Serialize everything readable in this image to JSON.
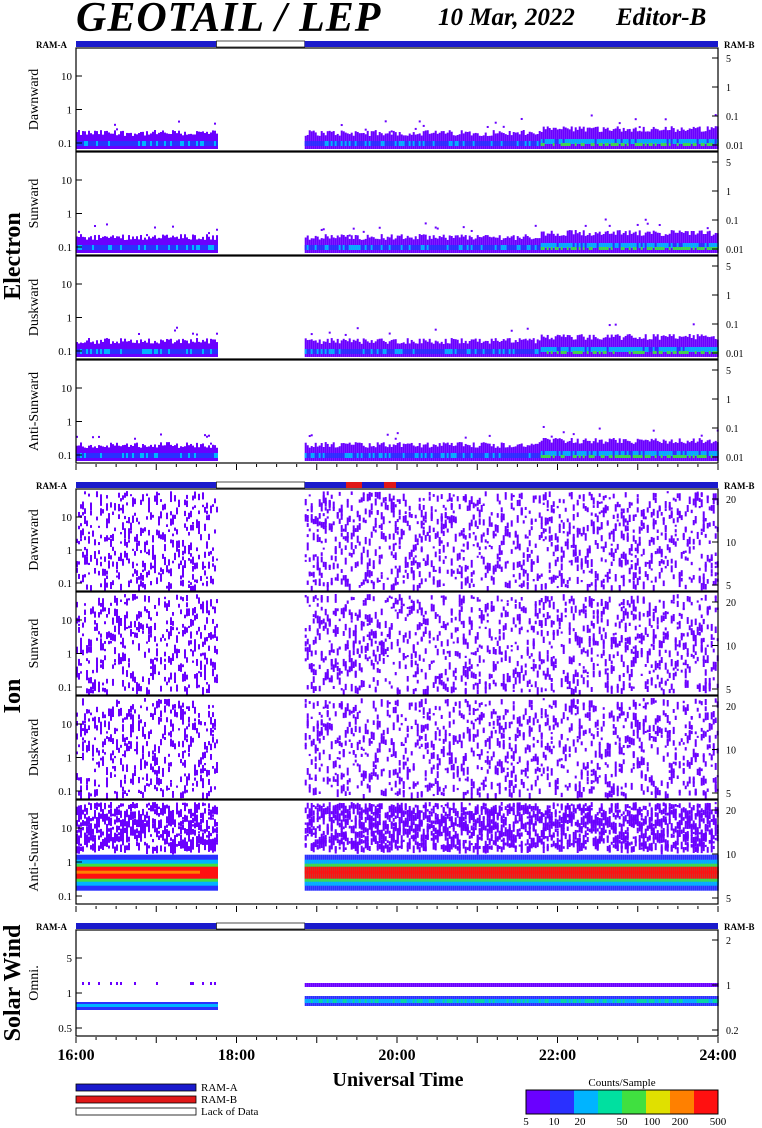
{
  "header": {
    "instrument": "GEOTAIL / LEP",
    "date": "10 Mar, 2022",
    "editor": "Editor-B"
  },
  "chart_data": {
    "type": "heatmap",
    "time_axis": {
      "label": "Universal Time",
      "range_hours": [
        16,
        24
      ],
      "tick_labels": [
        "16:00",
        "18:00",
        "20:00",
        "22:00",
        "24:00"
      ],
      "data_gap_hours": [
        17.75,
        18.85
      ]
    },
    "status_bar_labels": {
      "left": "RAM-A",
      "right": "RAM-B"
    },
    "groups": [
      {
        "name": "Electron",
        "panels": [
          {
            "name": "Dawnward",
            "left_ticks": [
              "10",
              "1",
              "0.1"
            ],
            "right_ticks": [
              "5",
              "1",
              "0.1",
              "0.01"
            ]
          },
          {
            "name": "Sunward",
            "left_ticks": [
              "10",
              "1",
              "0.1"
            ],
            "right_ticks": [
              "5",
              "1",
              "0.1",
              "0.01"
            ]
          },
          {
            "name": "Duskward",
            "left_ticks": [
              "10",
              "1",
              "0.1"
            ],
            "right_ticks": [
              "5",
              "1",
              "0.1",
              "0.01"
            ]
          },
          {
            "name": "Anti-Sunward",
            "left_ticks": [
              "10",
              "1",
              "0.1"
            ],
            "right_ticks": [
              "5",
              "1",
              "0.1",
              "0.01"
            ]
          }
        ]
      },
      {
        "name": "Ion",
        "panels": [
          {
            "name": "Dawnward",
            "left_ticks": [
              "10",
              "1",
              "0.1"
            ],
            "right_ticks": [
              "20",
              "10",
              "5"
            ]
          },
          {
            "name": "Sunward",
            "left_ticks": [
              "10",
              "1",
              "0.1"
            ],
            "right_ticks": [
              "20",
              "10",
              "5"
            ]
          },
          {
            "name": "Duskward",
            "left_ticks": [
              "10",
              "1",
              "0.1"
            ],
            "right_ticks": [
              "20",
              "10",
              "5"
            ]
          },
          {
            "name": "Anti-Sunward",
            "left_ticks": [
              "10",
              "1",
              "0.1"
            ],
            "right_ticks": [
              "20",
              "10",
              "5"
            ]
          }
        ]
      },
      {
        "name": "Solar Wind",
        "panels": [
          {
            "name": "Omni.",
            "left_ticks": [
              "5",
              "1",
              "0.5"
            ],
            "right_ticks": [
              "2",
              "1",
              "0.2"
            ]
          }
        ]
      }
    ],
    "legend": {
      "items": [
        {
          "label": "RAM-A",
          "color": "#1a1acc"
        },
        {
          "label": "RAM-B",
          "color": "#e01818"
        },
        {
          "label": "Lack of Data",
          "color": "#ffffff"
        }
      ]
    },
    "colorbar": {
      "title": "Counts/Sample",
      "ticks": [
        "5",
        "10",
        "20",
        "50",
        "100",
        "200",
        "500"
      ],
      "colors": [
        "#6a00ff",
        "#2a30ff",
        "#00b4ff",
        "#00e0a0",
        "#40e040",
        "#e0e000",
        "#ff8000",
        "#ff1010"
      ]
    }
  }
}
